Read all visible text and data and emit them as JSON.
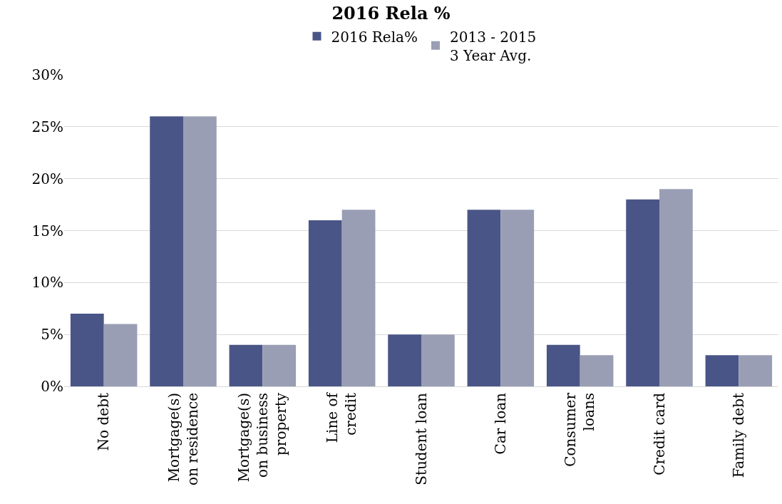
{
  "chart_data": {
    "type": "bar",
    "title": "2016 Rela %",
    "categories": [
      "No debt",
      "Mortgage(s) on residence",
      "Mortgage(s) on business property",
      "Line of credit",
      "Student loan",
      "Car loan",
      "Consumer loans",
      "Credit card",
      "Family debt"
    ],
    "series": [
      {
        "name": "2016 Rela%",
        "color": "#4a5587",
        "values": [
          7,
          26,
          4,
          16,
          5,
          17,
          4,
          18,
          3
        ]
      },
      {
        "name": "2013 - 2015 3 Year Avg.",
        "color": "#9a9eb4",
        "values": [
          6,
          26,
          4,
          17,
          5,
          17,
          3,
          19,
          3
        ]
      }
    ],
    "ylim": [
      0,
      30
    ],
    "yticks": [
      {
        "value": 0,
        "label": "0%"
      },
      {
        "value": 5,
        "label": "5%"
      },
      {
        "value": 10,
        "label": "10%"
      },
      {
        "value": 15,
        "label": "15%"
      },
      {
        "value": 20,
        "label": "20%"
      },
      {
        "value": 25,
        "label": "25%"
      },
      {
        "value": 30,
        "label": "30%"
      }
    ],
    "grid": "y",
    "legend": "top"
  }
}
